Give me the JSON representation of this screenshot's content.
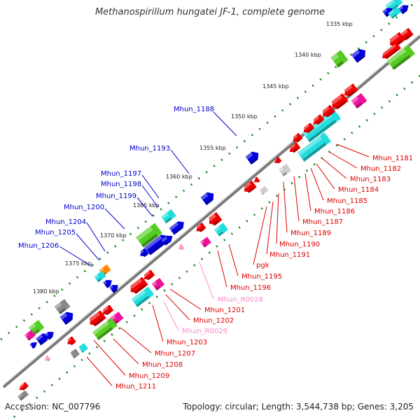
{
  "title": "Methanospirillum hungatei JF-1, complete genome",
  "footer": {
    "accession": "Accession: NC_007796",
    "topology": "Topology: circular; Length: 3,544,738 bp; Genes: 3,205"
  },
  "colors": {
    "backbone": "#999999",
    "kbp_tick": "#1a8a1a",
    "blue_label": "#0000cc",
    "red_label": "#dd0000",
    "pink_label": "#ff88cc",
    "gene_blue": "#0000dd",
    "gene_red": "#ee0000",
    "gene_cyan": "#22dddd",
    "gene_green": "#55cc22",
    "gene_magenta": "#ee1199",
    "gene_grey": "#888888",
    "gene_orange": "#ff8800",
    "gene_pink": "#ff99cc"
  },
  "kbp_labels": [
    "1335 kbp",
    "1340 kbp",
    "1345 kbp",
    "1350 kbp",
    "1355 kbp",
    "1360 kbp",
    "1365 kbp",
    "1370 kbp",
    "1375 kbp",
    "1380 kbp"
  ],
  "gene_labels_left": [
    "Mhun_1188",
    "Mhun_1193",
    "Mhun_1197",
    "Mhun_1198",
    "Mhun_1199",
    "Mhun_1200",
    "Mhun_1204",
    "Mhun_1205",
    "Mhun_1206"
  ],
  "gene_labels_right": [
    "Mhun_1181",
    "Mhun_1182",
    "Mhun_1183",
    "Mhun_1184",
    "Mhun_1185",
    "Mhun_1186",
    "Mhun_1187",
    "Mhun_1189",
    "Mhun_1190",
    "Mhun_1191",
    "pgk",
    "Mhun_1195",
    "Mhun_1196",
    "Mhun_R0028",
    "Mhun_1201",
    "Mhun_1202",
    "Mhun_R0029",
    "Mhun_1203",
    "Mhun_1207",
    "Mhun_1208",
    "Mhun_1209",
    "Mhun_1211"
  ],
  "pink_label_names": [
    "Mhun_R0028",
    "Mhun_R0029"
  ]
}
